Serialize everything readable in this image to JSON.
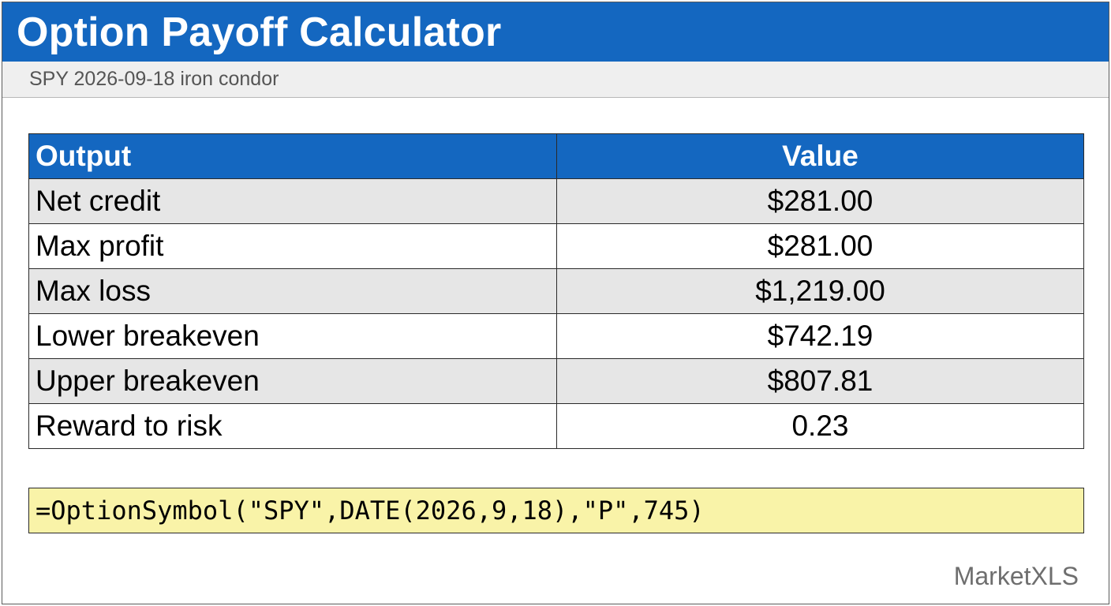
{
  "header": {
    "title": "Option Payoff Calculator",
    "subtitle": "SPY 2026-09-18 iron condor"
  },
  "table": {
    "columns": [
      "Output",
      "Value"
    ],
    "rows": [
      {
        "label": "Net credit",
        "value": "$281.00"
      },
      {
        "label": "Max profit",
        "value": "$281.00"
      },
      {
        "label": "Max loss",
        "value": "$1,219.00"
      },
      {
        "label": "Lower breakeven",
        "value": "$742.19"
      },
      {
        "label": "Upper breakeven",
        "value": "$807.81"
      },
      {
        "label": "Reward to risk",
        "value": "0.23"
      }
    ]
  },
  "formula": "=OptionSymbol(\"SPY\",DATE(2026,9,18),\"P\",745)",
  "footer": {
    "brand": "MarketXLS"
  },
  "colors": {
    "header_blue": "#1467c0",
    "row_shade": "#e6e6e6",
    "formula_bg": "#f9f3a8"
  }
}
